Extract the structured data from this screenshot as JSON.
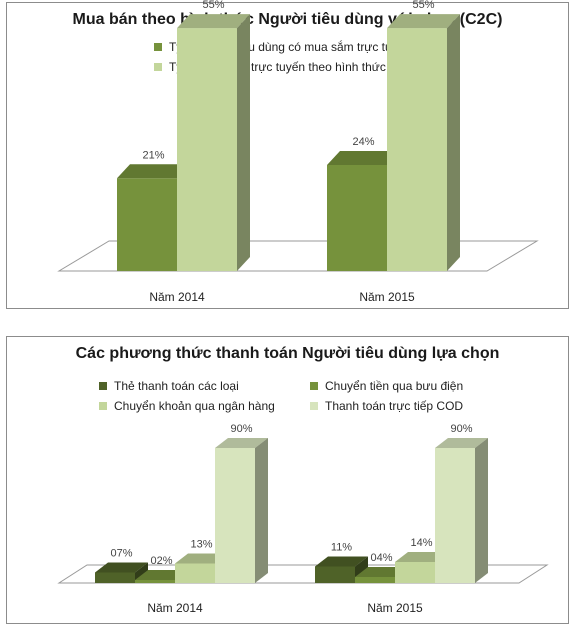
{
  "chart_data": [
    {
      "type": "bar",
      "title": "Mua bán theo hình thức Người tiêu dùng với nhau (C2C)",
      "categories": [
        "Năm 2014",
        "Năm 2015"
      ],
      "series": [
        {
          "name": "Tỷ lệ Người tiêu dùng có mua sắm trực tuyến",
          "values": [
            21,
            24
          ],
          "labels": [
            "21%",
            "24%"
          ],
          "color": "#76923c"
        },
        {
          "name": "Tỷ lệ mua sắm trực tuyến theo hình thức C2C",
          "values": [
            55,
            55
          ],
          "labels": [
            "55%",
            "55%"
          ],
          "color": "#c3d69b"
        }
      ],
      "ylim": [
        0,
        60
      ],
      "grid": false,
      "legend": "top"
    },
    {
      "type": "bar",
      "title": "Các phương thức thanh toán Người tiêu dùng lựa chọn",
      "categories": [
        "Năm 2014",
        "Năm 2015"
      ],
      "series": [
        {
          "name": "Thẻ thanh toán các loại",
          "values": [
            7,
            11
          ],
          "labels": [
            "07%",
            "11%"
          ],
          "color": "#4f6228"
        },
        {
          "name": "Chuyển tiền qua bưu điện",
          "values": [
            2,
            4
          ],
          "labels": [
            "02%",
            "04%"
          ],
          "color": "#76923c"
        },
        {
          "name": "Chuyển khoản qua ngân hàng",
          "values": [
            13,
            14
          ],
          "labels": [
            "13%",
            "14%"
          ],
          "color": "#c3d69b"
        },
        {
          "name": "Thanh toán trực tiếp COD",
          "values": [
            90,
            90
          ],
          "labels": [
            "90%",
            "90%"
          ],
          "color": "#d7e4bd"
        }
      ],
      "ylim": [
        0,
        100
      ],
      "grid": false,
      "legend": "top"
    }
  ]
}
